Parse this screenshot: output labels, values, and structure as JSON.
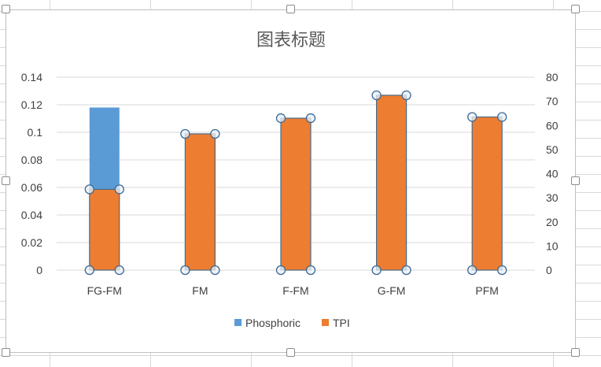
{
  "chart_data": {
    "type": "bar",
    "title": "图表标题",
    "categories": [
      "FG-FM",
      "FM",
      "F-FM",
      "G-FM",
      "PFM"
    ],
    "series": [
      {
        "name": "Phosphoric",
        "axis": "left",
        "values": [
          0.118,
          0,
          0,
          0,
          0
        ],
        "color": "#5B9BD5"
      },
      {
        "name": "TPI",
        "axis": "right",
        "values": [
          33.5,
          56.5,
          63,
          72.5,
          63.5
        ],
        "color": "#ED7D31"
      }
    ],
    "y_left": {
      "ylim": [
        0,
        0.14
      ],
      "ticks": [
        "0",
        "0.02",
        "0.04",
        "0.06",
        "0.08",
        "0.1",
        "0.12",
        "0.14"
      ]
    },
    "y_right": {
      "ylim": [
        0,
        80
      ],
      "ticks": [
        "0",
        "10",
        "20",
        "30",
        "40",
        "50",
        "60",
        "70",
        "80"
      ]
    },
    "grid": true,
    "legend": "bottom",
    "xlabel": "",
    "ylabel": ""
  }
}
